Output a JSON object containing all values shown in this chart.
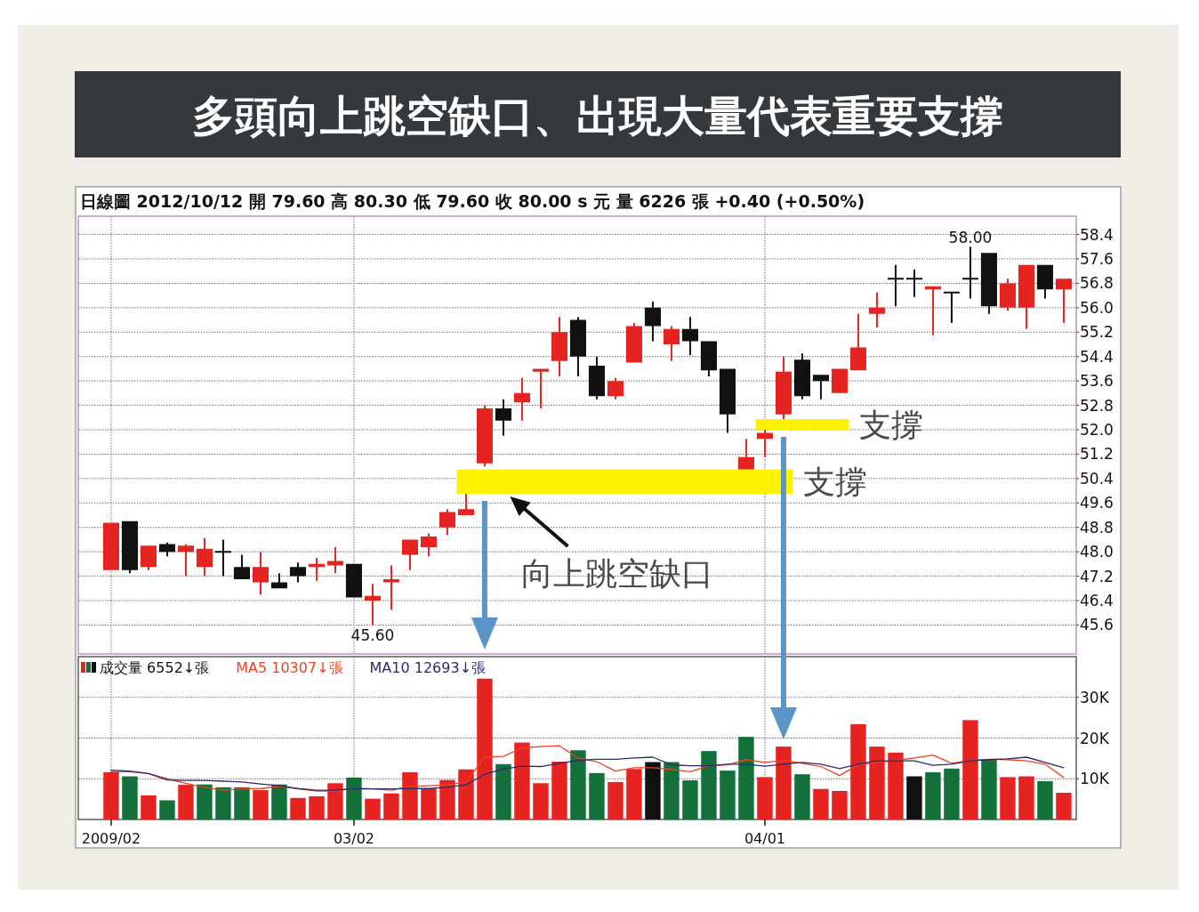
{
  "chart_data": [
    {
      "type": "candlestick",
      "title": "多頭向上跳空缺口、出現大量代表重要支撐",
      "subtitle": "日線圖 2012/10/12 開 79.60 高 80.30 低 79.60 收 80.00 s 元 量 6226 張 +0.40 (+0.50%)",
      "categories": [
        null,
        null,
        null,
        null,
        null,
        null,
        null,
        null,
        null,
        null,
        null,
        null,
        null,
        null,
        null,
        null,
        null,
        null,
        null,
        null,
        null,
        null,
        null,
        null,
        null,
        null,
        null,
        null,
        null,
        null,
        null,
        null,
        null,
        null,
        null,
        null,
        null,
        null,
        null,
        null,
        null,
        null,
        null,
        null,
        null,
        null,
        null,
        null,
        null,
        null,
        null,
        null
      ],
      "ohlc": [
        [
          47.4,
          48.95,
          47.4,
          48.95
        ],
        [
          49.0,
          49.0,
          47.3,
          47.4
        ],
        [
          47.5,
          48.2,
          47.4,
          48.2
        ],
        [
          48.25,
          48.3,
          47.85,
          48.0
        ],
        [
          48.0,
          48.25,
          47.2,
          48.2
        ],
        [
          47.5,
          48.45,
          47.2,
          48.1
        ],
        [
          48.0,
          48.4,
          47.2,
          48.0
        ],
        [
          47.5,
          47.9,
          47.1,
          47.1
        ],
        [
          47.0,
          48.0,
          46.6,
          47.5
        ],
        [
          47.0,
          47.3,
          46.8,
          46.8
        ],
        [
          47.5,
          47.65,
          47.0,
          47.2
        ],
        [
          47.5,
          47.8,
          47.05,
          47.6
        ],
        [
          47.55,
          48.15,
          47.3,
          47.7
        ],
        [
          47.6,
          47.6,
          46.5,
          46.5
        ],
        [
          46.4,
          46.95,
          45.6,
          46.55
        ],
        [
          47.0,
          47.55,
          46.1,
          47.1
        ],
        [
          47.9,
          48.4,
          47.4,
          48.4
        ],
        [
          48.15,
          48.6,
          47.85,
          48.5
        ],
        [
          48.8,
          49.4,
          48.55,
          49.3
        ],
        [
          49.2,
          49.9,
          49.2,
          49.4
        ],
        [
          50.9,
          52.8,
          50.8,
          52.7
        ],
        [
          52.7,
          53.0,
          51.8,
          52.3
        ],
        [
          52.9,
          53.7,
          52.3,
          53.2
        ],
        [
          53.9,
          54.0,
          52.7,
          54.0
        ],
        [
          54.25,
          55.7,
          53.75,
          55.2
        ],
        [
          55.6,
          55.7,
          53.75,
          54.4
        ],
        [
          54.1,
          54.4,
          53.0,
          53.1
        ],
        [
          53.1,
          53.7,
          53.0,
          53.6
        ],
        [
          54.2,
          55.5,
          54.2,
          55.4
        ],
        [
          56.0,
          56.2,
          54.9,
          55.4
        ],
        [
          54.8,
          55.4,
          54.25,
          55.3
        ],
        [
          55.3,
          55.7,
          54.45,
          54.9
        ],
        [
          54.9,
          54.9,
          53.75,
          53.95
        ],
        [
          54.0,
          54.0,
          51.9,
          52.5
        ],
        [
          50.7,
          51.7,
          50.7,
          51.1
        ],
        [
          51.7,
          52.0,
          51.1,
          51.9
        ],
        [
          52.5,
          54.4,
          52.35,
          53.9
        ],
        [
          54.3,
          54.5,
          53.0,
          53.1
        ],
        [
          53.8,
          53.8,
          53.0,
          53.6
        ],
        [
          53.2,
          54.0,
          53.2,
          54.0
        ],
        [
          53.95,
          55.8,
          53.95,
          54.7
        ],
        [
          55.8,
          56.5,
          55.35,
          56.0
        ],
        [
          56.95,
          57.4,
          56.05,
          56.95
        ],
        [
          56.95,
          57.25,
          56.35,
          56.95
        ],
        [
          56.6,
          56.7,
          55.1,
          56.7
        ],
        [
          56.5,
          56.5,
          55.5,
          56.5
        ],
        [
          56.95,
          58.0,
          56.3,
          56.95
        ],
        [
          57.8,
          57.8,
          55.8,
          56.05
        ],
        [
          56.0,
          56.95,
          55.9,
          56.8
        ],
        [
          56.0,
          57.4,
          55.3,
          57.4
        ],
        [
          57.4,
          57.4,
          56.3,
          56.6
        ],
        [
          56.6,
          56.95,
          55.5,
          56.95
        ]
      ],
      "colors": [
        "#e52421",
        "#111111",
        "#e52421",
        "#111111",
        "#e52421",
        "#e52421",
        "#111111",
        "#111111",
        "#e52421",
        "#111111",
        "#111111",
        "#e52421",
        "#e52421",
        "#111111",
        "#e52421",
        "#e52421",
        "#e52421",
        "#e52421",
        "#e52421",
        "#e52421",
        "#e52421",
        "#111111",
        "#e52421",
        "#e52421",
        "#e52421",
        "#111111",
        "#111111",
        "#e52421",
        "#e52421",
        "#111111",
        "#e52421",
        "#111111",
        "#111111",
        "#111111",
        "#e52421",
        "#e52421",
        "#e52421",
        "#111111",
        "#111111",
        "#e52421",
        "#e52421",
        "#e52421",
        "#111111",
        "#111111",
        "#e52421",
        "#111111",
        "#111111",
        "#111111",
        "#e52421",
        "#e52421",
        "#111111",
        "#e52421"
      ],
      "bands": [
        {
          "axis": "y",
          "from": 49.9,
          "to": 50.7,
          "label": "支撐",
          "color": "#fff200"
        },
        {
          "axis": "y",
          "from": 52.0,
          "to": 52.35,
          "label": "支撐",
          "color": "#fff200"
        }
      ],
      "ylim": [
        44.65,
        59.0
      ],
      "yticks": [
        45.6,
        46.4,
        47.2,
        {
          "value": 48,
          "label": "48.0"
        },
        48.8,
        49.6,
        50.4,
        51.2,
        {
          "value": 52,
          "label": "52.0"
        },
        52.8,
        53.6,
        54.4,
        55.2,
        {
          "value": 56,
          "label": "56.0"
        },
        56.8,
        57.6,
        58.4
      ],
      "grid": true,
      "annotations": [
        "向上跳空缺口",
        {
          "text": "58.00",
          "y": 58.0
        },
        {
          "text": "45.60",
          "y": 45.6
        }
      ]
    },
    {
      "type": "bar",
      "categories": [
        "2009/02",
        null,
        null,
        null,
        null,
        null,
        null,
        null,
        null,
        null,
        null,
        null,
        null,
        "03/02",
        null,
        null,
        null,
        null,
        null,
        null,
        null,
        null,
        null,
        null,
        null,
        null,
        null,
        null,
        null,
        null,
        null,
        null,
        null,
        null,
        null,
        "04/01",
        null,
        null,
        null,
        null,
        null,
        null,
        null,
        null,
        null,
        null,
        null,
        null,
        null,
        null,
        null,
        null
      ],
      "series": [
        {
          "type": "bar",
          "name": "成交量 6552↓張",
          "colors": [
            "#e52421",
            "#13703a",
            "#e52421",
            "#13703a",
            "#e52421",
            "#13703a",
            "#13703a",
            "#13703a",
            "#e52421",
            "#13703a",
            "#e52421",
            "#e52421",
            "#e52421",
            "#13703a",
            "#e52421",
            "#e52421",
            "#e52421",
            "#e52421",
            "#e52421",
            "#e52421",
            "#e52421",
            "#13703a",
            "#e52421",
            "#e52421",
            "#e52421",
            "#13703a",
            "#13703a",
            "#e52421",
            "#e52421",
            "#111111",
            "#13703a",
            "#13703a",
            "#13703a",
            "#13703a",
            "#13703a",
            "#e52421",
            "#e52421",
            "#13703a",
            "#e52421",
            "#e52421",
            "#e52421",
            "#e52421",
            "#e52421",
            "#111111",
            "#13703a",
            "#13703a",
            "#e52421",
            "#13703a",
            "#e52421",
            "#e52421",
            "#13703a",
            "#e52421"
          ],
          "values": [
            11600,
            10600,
            5900,
            4700,
            8500,
            8600,
            7900,
            7900,
            7200,
            8600,
            5300,
            5700,
            8900,
            10300,
            5100,
            6400,
            11600,
            7600,
            9700,
            12300,
            34600,
            13600,
            18900,
            8900,
            14200,
            17000,
            11400,
            9200,
            12400,
            14100,
            14100,
            9600,
            16800,
            12000,
            20300,
            10400,
            17900,
            11100,
            7500,
            7000,
            23400,
            17900,
            16400,
            10600,
            11600,
            12500,
            24400,
            14700,
            10400,
            10600,
            9400,
            6552
          ]
        },
        {
          "type": "line",
          "name": "MA5 10307↓張",
          "color": "#f04020",
          "values": [
            11700,
            11700,
            11300,
            10000,
            8900,
            7900,
            7200,
            7500,
            7600,
            8100,
            7500,
            7000,
            7000,
            7600,
            7500,
            7200,
            8100,
            8300,
            8500,
            9200,
            15300,
            15500,
            17600,
            17900,
            18100,
            15100,
            14200,
            11900,
            12700,
            12700,
            12300,
            11700,
            13200,
            13400,
            14700,
            14000,
            14500,
            13800,
            13000,
            10800,
            13400,
            14000,
            14500,
            15100,
            15800,
            13800,
            14500,
            14800,
            14700,
            14400,
            13600,
            10307
          ]
        },
        {
          "type": "line",
          "name": "MA10 12693↓張",
          "color": "#2a2a70",
          "values": [
            12100,
            11900,
            11300,
            9700,
            9600,
            9600,
            9400,
            9200,
            8700,
            8300,
            7600,
            7200,
            7200,
            7600,
            7500,
            7500,
            7600,
            7600,
            7900,
            8500,
            11100,
            12400,
            13100,
            13000,
            13800,
            14500,
            14800,
            14800,
            15100,
            15300,
            13400,
            13200,
            13200,
            13600,
            13600,
            13100,
            13600,
            14000,
            13600,
            12500,
            13600,
            14400,
            14400,
            14400,
            13300,
            13600,
            14400,
            14700,
            14900,
            15300,
            14000,
            12693
          ]
        }
      ],
      "ylim": [
        0,
        40000
      ],
      "yticks": [
        {
          "value": 10000,
          "label": "10K"
        },
        {
          "value": 20000,
          "label": "20K"
        },
        {
          "value": 30000,
          "label": "30K"
        }
      ],
      "grid": true,
      "legend": "top left"
    }
  ]
}
